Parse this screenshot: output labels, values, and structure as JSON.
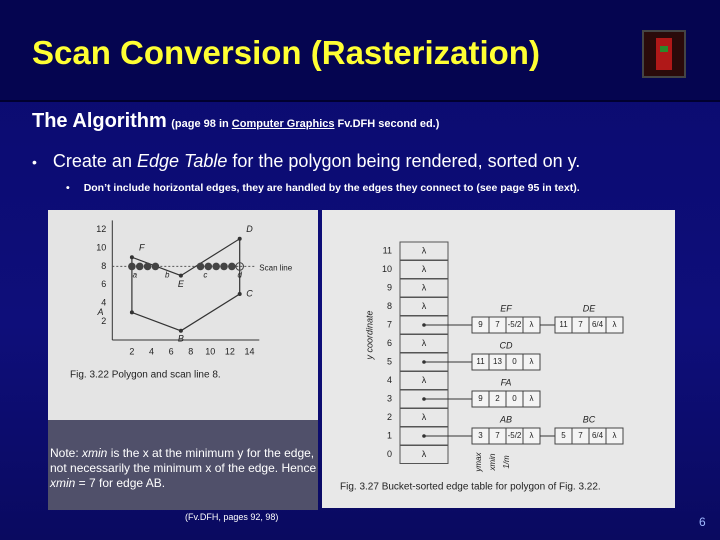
{
  "header": {
    "title": "Scan Conversion (Rasterization)"
  },
  "section": {
    "heading": "The Algorithm",
    "reference": [
      "(page 98 in ",
      "Computer Graphics",
      " Fv.DFH second ed.)"
    ]
  },
  "bullet": [
    "Create an ",
    "Edge Table",
    " for the polygon being rendered, sorted on y."
  ],
  "sub_bullet": "Don’t include horizontal edges, they are handled by the edges they connect to (see page 95 in text).",
  "figure_left": {
    "y_labels": [
      "12",
      "10",
      "8",
      "6",
      "4",
      "2"
    ],
    "x_labels": [
      "2",
      "4",
      "6",
      "8",
      "10",
      "12",
      "14"
    ],
    "vertex_labels": [
      "A",
      "B",
      "C",
      "D",
      "E",
      "F"
    ],
    "point_labels": [
      "a",
      "b",
      "c",
      "d"
    ],
    "scan_line_label": "Scan line",
    "caption": "Fig. 3.22 Polygon and scan line 8."
  },
  "figure_right": {
    "axis_label": "y coordinate",
    "rows": [
      "11",
      "10",
      "9",
      "8",
      "7",
      "6",
      "5",
      "4",
      "3",
      "2",
      "1",
      "0"
    ],
    "empty_marker": "λ",
    "edges": [
      {
        "name": "EF",
        "cells": [
          "9",
          "7",
          "-5/2"
        ]
      },
      {
        "name": "DE",
        "cells": [
          "11",
          "7",
          "6/4"
        ]
      },
      {
        "name": "CD",
        "cells": [
          "11",
          "13",
          "0"
        ]
      },
      {
        "name": "FA",
        "cells": [
          "9",
          "2",
          "0"
        ]
      },
      {
        "name": "AB",
        "cells": [
          "3",
          "7",
          "-5/2"
        ]
      },
      {
        "name": "BC",
        "cells": [
          "5",
          "7",
          "6/4"
        ]
      }
    ],
    "column_labels": [
      "ymax",
      "xmin",
      "1/m"
    ],
    "caption": "Fig. 3.27 Bucket-sorted edge table for polygon of Fig. 3.22."
  },
  "note": [
    "Note: ",
    "xmin",
    " is the x at the minimum y for the edge, not necessarily the minimum x of the edge. Hence ",
    "xmin",
    " = 7 for edge AB."
  ],
  "citation": "(Fv.DFH, pages 92, 98)",
  "page_number": "6"
}
